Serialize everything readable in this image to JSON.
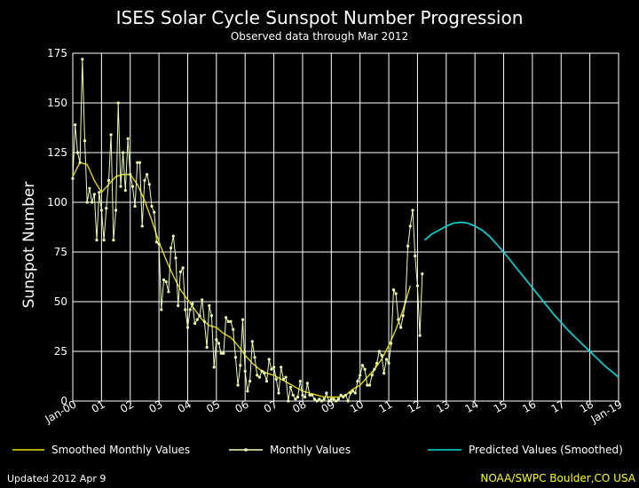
{
  "chart_data": {
    "type": "line",
    "title": "ISES Solar Cycle Sunspot Number Progression",
    "subtitle": "Observed data through Mar 2012",
    "ylabel": "Sunspot Number",
    "xlabel": "",
    "ylim": [
      0,
      175
    ],
    "xlim": [
      2000.0,
      2019.0
    ],
    "grid": true,
    "y_ticks": [
      "0",
      "25",
      "50",
      "75",
      "100",
      "125",
      "150",
      "175"
    ],
    "x_ticks": [
      {
        "label": "Jan-00",
        "x": 2000.0
      },
      {
        "label": "01",
        "x": 2001.0
      },
      {
        "label": "02",
        "x": 2002.0
      },
      {
        "label": "03",
        "x": 2003.0
      },
      {
        "label": "04",
        "x": 2004.0
      },
      {
        "label": "05",
        "x": 2005.0
      },
      {
        "label": "06",
        "x": 2006.0
      },
      {
        "label": "07",
        "x": 2007.0
      },
      {
        "label": "08",
        "x": 2008.0
      },
      {
        "label": "09",
        "x": 2009.0
      },
      {
        "label": "10",
        "x": 2010.0
      },
      {
        "label": "11",
        "x": 2011.0
      },
      {
        "label": "12",
        "x": 2012.0
      },
      {
        "label": "13",
        "x": 2013.0
      },
      {
        "label": "14",
        "x": 2014.0
      },
      {
        "label": "15",
        "x": 2015.0
      },
      {
        "label": "16",
        "x": 2016.0
      },
      {
        "label": "17",
        "x": 2017.0
      },
      {
        "label": "18",
        "x": 2018.0
      },
      {
        "label": "Jan-19",
        "x": 2019.0
      }
    ],
    "series": [
      {
        "name": "Smoothed Monthly Values",
        "color": "#e6d800",
        "x": [
          2000.0,
          2000.25,
          2000.5,
          2000.75,
          2001.0,
          2001.25,
          2001.5,
          2001.75,
          2002.0,
          2002.25,
          2002.5,
          2002.75,
          2003.0,
          2003.25,
          2003.5,
          2003.75,
          2004.0,
          2004.25,
          2004.5,
          2004.75,
          2005.0,
          2005.25,
          2005.5,
          2005.75,
          2006.0,
          2006.25,
          2006.5,
          2006.75,
          2007.0,
          2007.25,
          2007.5,
          2007.75,
          2008.0,
          2008.25,
          2008.5,
          2008.75,
          2009.0,
          2009.25,
          2009.5,
          2009.75,
          2010.0,
          2010.25,
          2010.5,
          2010.75,
          2011.0,
          2011.25,
          2011.5,
          2011.75
        ],
        "values": [
          113,
          120,
          119,
          111,
          105,
          109,
          113,
          114,
          114,
          109,
          101,
          91,
          80,
          71,
          63,
          56,
          51,
          46,
          41,
          38,
          37,
          34,
          32,
          28,
          23,
          19,
          16,
          14,
          13,
          11,
          9,
          7,
          5,
          4,
          3,
          2,
          2,
          2,
          3,
          6,
          8,
          12,
          16,
          21,
          28,
          36,
          46,
          58
        ]
      },
      {
        "name": "Monthly Values",
        "color": "#e8ffb0",
        "x": [
          2000.0,
          2000.083,
          2000.167,
          2000.25,
          2000.333,
          2000.417,
          2000.5,
          2000.583,
          2000.667,
          2000.75,
          2000.833,
          2000.917,
          2001.0,
          2001.083,
          2001.167,
          2001.25,
          2001.333,
          2001.417,
          2001.5,
          2001.583,
          2001.667,
          2001.75,
          2001.833,
          2001.917,
          2002.0,
          2002.083,
          2002.167,
          2002.25,
          2002.333,
          2002.417,
          2002.5,
          2002.583,
          2002.667,
          2002.75,
          2002.833,
          2002.917,
          2003.0,
          2003.083,
          2003.167,
          2003.25,
          2003.333,
          2003.417,
          2003.5,
          2003.583,
          2003.667,
          2003.75,
          2003.833,
          2003.917,
          2004.0,
          2004.083,
          2004.167,
          2004.25,
          2004.333,
          2004.417,
          2004.5,
          2004.583,
          2004.667,
          2004.75,
          2004.833,
          2004.917,
          2005.0,
          2005.083,
          2005.167,
          2005.25,
          2005.333,
          2005.417,
          2005.5,
          2005.583,
          2005.667,
          2005.75,
          2005.833,
          2005.917,
          2006.0,
          2006.083,
          2006.167,
          2006.25,
          2006.333,
          2006.417,
          2006.5,
          2006.583,
          2006.667,
          2006.75,
          2006.833,
          2006.917,
          2007.0,
          2007.083,
          2007.167,
          2007.25,
          2007.333,
          2007.417,
          2007.5,
          2007.583,
          2007.667,
          2007.75,
          2007.833,
          2007.917,
          2008.0,
          2008.083,
          2008.167,
          2008.25,
          2008.333,
          2008.417,
          2008.5,
          2008.583,
          2008.667,
          2008.75,
          2008.833,
          2008.917,
          2009.0,
          2009.083,
          2009.167,
          2009.25,
          2009.333,
          2009.417,
          2009.5,
          2009.583,
          2009.667,
          2009.75,
          2009.833,
          2009.917,
          2010.0,
          2010.083,
          2010.167,
          2010.25,
          2010.333,
          2010.417,
          2010.5,
          2010.583,
          2010.667,
          2010.75,
          2010.833,
          2010.917,
          2011.0,
          2011.083,
          2011.167,
          2011.25,
          2011.333,
          2011.417,
          2011.5,
          2011.583,
          2011.667,
          2011.75,
          2011.833,
          2011.917,
          2012.0,
          2012.083,
          2012.167
        ],
        "values": [
          112,
          139,
          125,
          120,
          172,
          131,
          100,
          107,
          100,
          104,
          81,
          105,
          96,
          81,
          97,
          111,
          134,
          81,
          96,
          150,
          108,
          125,
          106,
          132,
          114,
          108,
          98,
          120,
          120,
          88,
          111,
          114,
          109,
          98,
          95,
          80,
          79,
          46,
          61,
          60,
          55,
          77,
          83,
          72,
          48,
          65,
          67,
          46,
          37,
          46,
          49,
          39,
          41,
          43,
          51,
          40,
          27,
          48,
          43,
          17,
          31,
          29,
          24,
          24,
          42,
          40,
          40,
          36,
          22,
          8,
          18,
          41,
          15,
          5,
          10,
          30,
          22,
          13,
          12,
          15,
          14,
          10,
          21,
          16,
          17,
          11,
          4,
          17,
          11,
          12,
          0,
          7,
          3,
          1,
          2,
          10,
          3,
          2,
          9,
          3,
          3,
          1,
          0,
          1,
          0,
          1,
          4,
          0,
          1,
          1,
          0,
          1,
          3,
          2,
          3,
          0,
          4,
          5,
          4,
          10,
          13,
          18,
          16,
          8,
          8,
          13,
          16,
          19,
          25,
          23,
          14,
          21,
          19,
          29,
          56,
          54,
          41,
          37,
          43,
          50,
          78,
          88,
          96,
          73,
          58,
          33,
          64
        ]
      },
      {
        "name": "Predicted Values (Smoothed)",
        "color": "#00dddd",
        "x": [
          2012.25,
          2012.5,
          2012.75,
          2013.0,
          2013.25,
          2013.5,
          2013.75,
          2014.0,
          2014.25,
          2014.5,
          2014.75,
          2015.0,
          2015.25,
          2015.5,
          2015.75,
          2016.0,
          2016.25,
          2016.5,
          2016.75,
          2017.0,
          2017.25,
          2017.5,
          2017.75,
          2018.0,
          2018.25,
          2018.5,
          2018.75,
          2019.0
        ],
        "values": [
          81,
          84,
          86,
          88,
          89.5,
          90,
          89.5,
          88,
          86,
          83,
          79,
          75,
          70.5,
          66,
          61.5,
          57,
          52.5,
          48,
          43.5,
          39.5,
          35.5,
          32,
          28.5,
          25,
          21.5,
          18,
          15,
          12
        ]
      }
    ]
  },
  "legend": [
    {
      "label": "Smoothed Monthly Values",
      "color": "#e6d800",
      "style": "line"
    },
    {
      "label": "Monthly Values",
      "color": "#e8ffb0",
      "style": "line-dot"
    },
    {
      "label": "Predicted Values (Smoothed)",
      "color": "#00dddd",
      "style": "line"
    }
  ],
  "footer": {
    "updated": "Updated 2012 Apr  9",
    "source": "NOAA/SWPC Boulder,CO USA"
  }
}
